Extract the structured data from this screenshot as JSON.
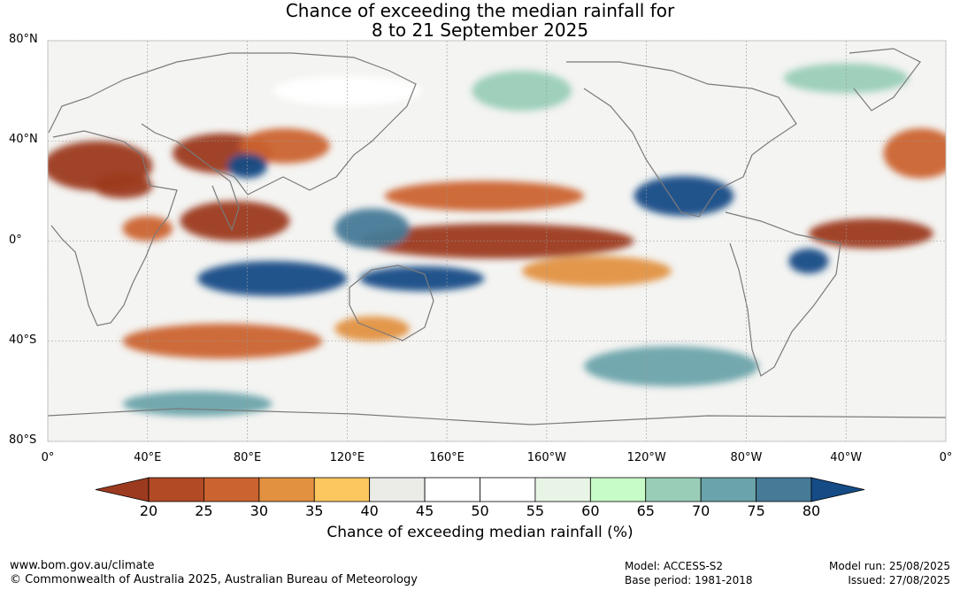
{
  "title": {
    "line1": "Chance of exceeding the median rainfall for",
    "line2": "8 to 21 September 2025"
  },
  "map": {
    "lat_labels": [
      "80°N",
      "40°N",
      "0°",
      "40°S",
      "80°S"
    ],
    "lon_labels": [
      "0°",
      "40°E",
      "80°E",
      "120°E",
      "160°E",
      "160°W",
      "120°W",
      "80°W",
      "40°W",
      "0°"
    ],
    "lat_values": [
      80,
      40,
      0,
      -40,
      -80
    ],
    "lon_values": [
      0,
      40,
      80,
      120,
      160,
      200,
      240,
      280,
      320,
      360
    ],
    "anomaly_regions": [
      {
        "lon": 20,
        "lat": 30,
        "rx": 22,
        "ry": 10,
        "class": 20
      },
      {
        "lon": 70,
        "lat": 35,
        "rx": 20,
        "ry": 8,
        "class": 20
      },
      {
        "lon": 95,
        "lat": 38,
        "rx": 18,
        "ry": 7,
        "class": 25
      },
      {
        "lon": 30,
        "lat": 22,
        "rx": 12,
        "ry": 5,
        "class": 20
      },
      {
        "lon": 75,
        "lat": 8,
        "rx": 22,
        "ry": 8,
        "class": 20
      },
      {
        "lon": 40,
        "lat": 5,
        "rx": 10,
        "ry": 5,
        "class": 25
      },
      {
        "lon": 180,
        "lat": 0,
        "rx": 55,
        "ry": 7,
        "class": 20
      },
      {
        "lon": 175,
        "lat": 18,
        "rx": 40,
        "ry": 6,
        "class": 25
      },
      {
        "lon": 220,
        "lat": -12,
        "rx": 30,
        "ry": 6,
        "class": 30
      },
      {
        "lon": 330,
        "lat": 3,
        "rx": 25,
        "ry": 6,
        "class": 20
      },
      {
        "lon": 350,
        "lat": 35,
        "rx": 15,
        "ry": 10,
        "class": 25
      },
      {
        "lon": 70,
        "lat": -40,
        "rx": 40,
        "ry": 7,
        "class": 25
      },
      {
        "lon": 130,
        "lat": -35,
        "rx": 15,
        "ry": 5,
        "class": 30
      },
      {
        "lon": 90,
        "lat": -15,
        "rx": 30,
        "ry": 7,
        "class": 80
      },
      {
        "lon": 150,
        "lat": -15,
        "rx": 25,
        "ry": 5,
        "class": 80
      },
      {
        "lon": 130,
        "lat": 5,
        "rx": 15,
        "ry": 8,
        "class": 75
      },
      {
        "lon": 255,
        "lat": 18,
        "rx": 20,
        "ry": 8,
        "class": 80
      },
      {
        "lon": 305,
        "lat": -8,
        "rx": 8,
        "ry": 5,
        "class": 80
      },
      {
        "lon": 80,
        "lat": 30,
        "rx": 8,
        "ry": 5,
        "class": 80
      },
      {
        "lon": 250,
        "lat": -50,
        "rx": 35,
        "ry": 8,
        "class": 70
      },
      {
        "lon": 60,
        "lat": -65,
        "rx": 30,
        "ry": 5,
        "class": 70
      },
      {
        "lon": 190,
        "lat": 60,
        "rx": 20,
        "ry": 8,
        "class": 65
      },
      {
        "lon": 320,
        "lat": 65,
        "rx": 25,
        "ry": 6,
        "class": 65
      },
      {
        "lon": 120,
        "lat": 60,
        "rx": 30,
        "ry": 6,
        "class": 45
      }
    ]
  },
  "colorbar": {
    "ticks": [
      "20",
      "25",
      "30",
      "35",
      "40",
      "45",
      "50",
      "55",
      "60",
      "65",
      "70",
      "75",
      "80"
    ],
    "colors": [
      "#9c3a20",
      "#b24a25",
      "#cb6330",
      "#e29140",
      "#fdc760",
      "#ebebe8",
      "#ffffff",
      "#ffffff",
      "#e8f5e6",
      "#c7fbc7",
      "#99cdb7",
      "#6aa3aa",
      "#467a97",
      "#154c86"
    ],
    "title": "Chance of exceeding median rainfall (%)"
  },
  "footer": {
    "url": "www.bom.gov.au/climate",
    "copyright": "© Commonwealth of Australia 2025, Australian Bureau of Meteorology",
    "model": "Model: ACCESS-S2",
    "base_period": "Base period: 1981-2018",
    "model_run": "Model run: 25/08/2025",
    "issued": "Issued: 27/08/2025"
  }
}
